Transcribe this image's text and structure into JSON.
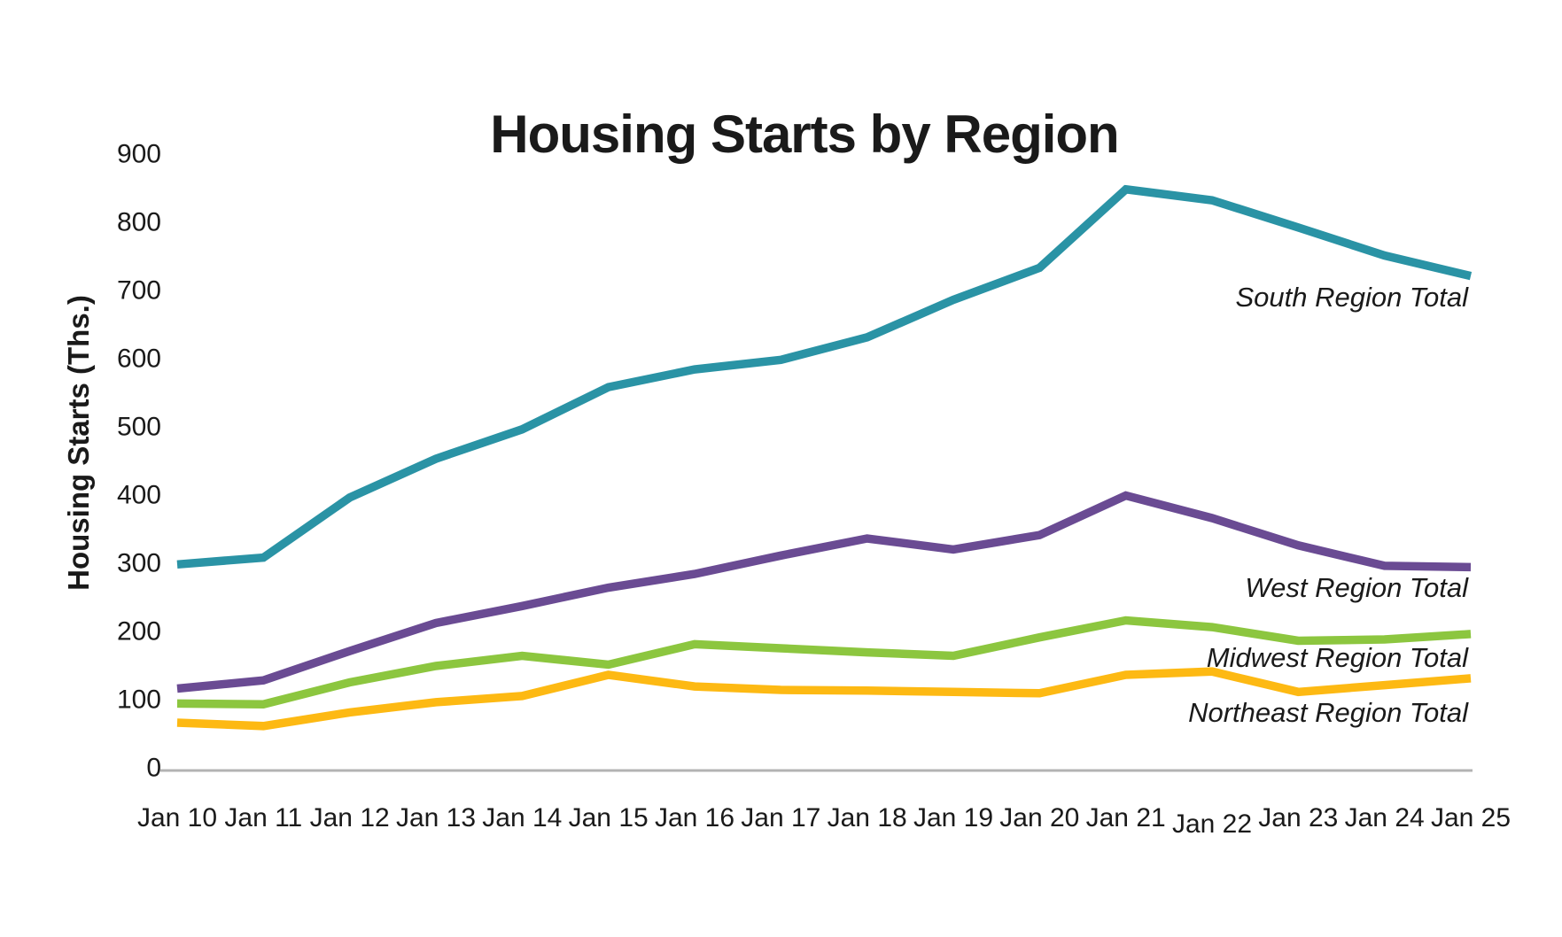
{
  "page": {
    "background": "#ffffff",
    "text_color": "#1a1a1a",
    "axis_line_color": "#b3b3b3"
  },
  "chart_data": {
    "type": "line",
    "title": "Housing Starts by Region",
    "ylabel": "Housing Starts (Ths.)",
    "xlabel": "",
    "ylim": [
      0,
      900
    ],
    "grid": false,
    "legend": "direct-labels-right",
    "y_ticks": [
      0,
      100,
      200,
      300,
      400,
      500,
      600,
      700,
      800,
      900
    ],
    "categories": [
      "Jan 10",
      "Jan 11",
      "Jan 12",
      "Jan 13",
      "Jan 14",
      "Jan 15",
      "Jan 16",
      "Jan 17",
      "Jan 18",
      "Jan 19",
      "Jan 20",
      "Jan 21",
      "Jan 22",
      "Jan 23",
      "Jan 24",
      "Jan 25"
    ],
    "series": [
      {
        "name": "South Region Total",
        "color": "#2a93a5",
        "values": [
          297,
          307,
          395,
          452,
          495,
          557,
          583,
          597,
          630,
          685,
          732,
          847,
          831,
          791,
          750,
          720
        ]
      },
      {
        "name": "West Region Total",
        "color": "#6a4b93",
        "values": [
          115,
          127,
          170,
          211,
          236,
          263,
          283,
          310,
          335,
          319,
          340,
          398,
          365,
          325,
          295,
          293
        ]
      },
      {
        "name": "Midwest Region Total",
        "color": "#8cc63f",
        "values": [
          93,
          92,
          124,
          148,
          163,
          150,
          180,
          174,
          168,
          163,
          190,
          215,
          205,
          185,
          187,
          195
        ]
      },
      {
        "name": "Northeast Region Total",
        "color": "#fdb913",
        "values": [
          65,
          60,
          80,
          95,
          104,
          135,
          118,
          113,
          112,
          110,
          108,
          135,
          140,
          110,
          120,
          130
        ]
      }
    ]
  }
}
